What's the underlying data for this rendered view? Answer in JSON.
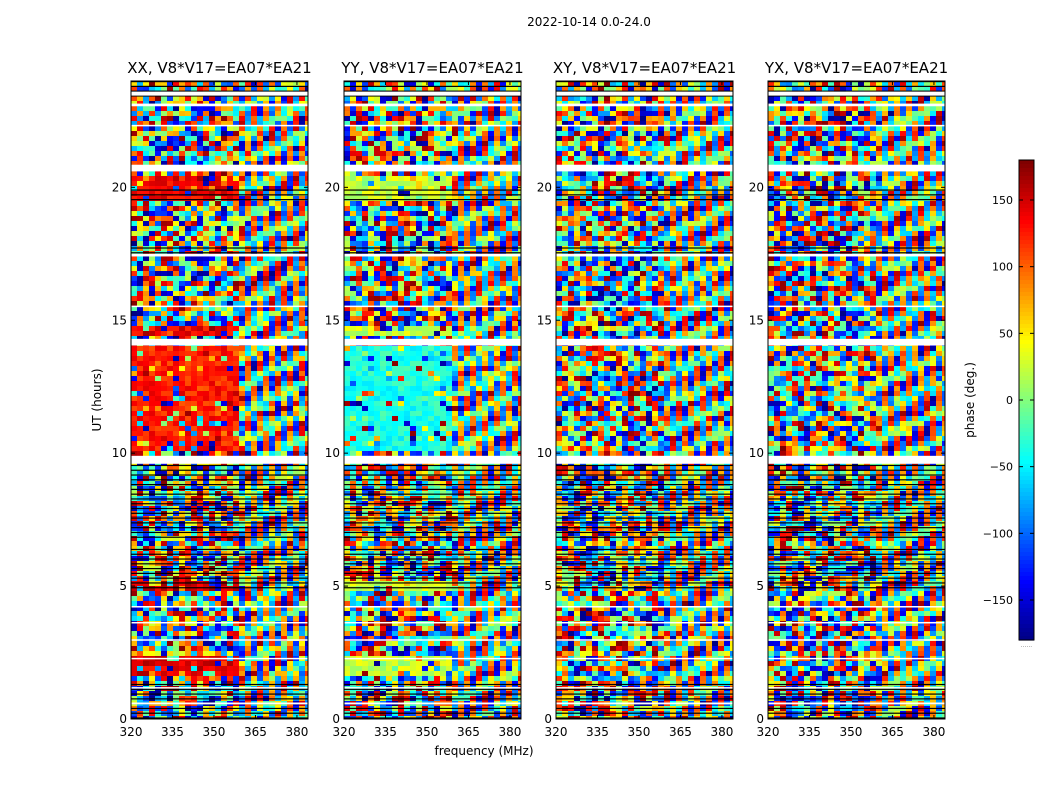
{
  "figure": {
    "suptitle": "2022-10-14 0.0-24.0",
    "xlabel": "frequency (MHz)",
    "ylabel": "UT (hours)"
  },
  "colorbar": {
    "label": "phase (deg.)",
    "range": [
      -180,
      180
    ],
    "ticks": [
      150,
      100,
      50,
      0,
      -50,
      -100,
      -150
    ],
    "tick_labels": [
      "150",
      "100",
      "50",
      "0",
      "−50",
      "−100",
      "−150"
    ],
    "footer": "......",
    "colormap": "jet"
  },
  "colors": {
    "jet": [
      "#00007f",
      "#0000ff",
      "#007fff",
      "#00ffff",
      "#7fff7f",
      "#ffff00",
      "#ff7f00",
      "#ff0000",
      "#7f0000"
    ],
    "background": "#ffffff",
    "axes": "#000000"
  },
  "chart_data": [
    {
      "type": "heatmap",
      "title": "XX, V8*V17=EA07*EA21",
      "xlim": [
        320,
        384
      ],
      "ylim": [
        0,
        24
      ],
      "xticks": [
        320,
        335,
        350,
        365,
        380
      ],
      "xtick_labels": [
        "320",
        "335",
        "350",
        "365",
        "380"
      ],
      "yticks": [
        0,
        5,
        10,
        15,
        20
      ],
      "ytick_labels": [
        "0",
        "5",
        "10",
        "15",
        "20"
      ],
      "value": "phase (deg.)",
      "pattern": "noisy phase; near-constant ~140° below 360 MHz during 19.5–20.5 h, 14.3–14.8 h, 10–14 h, 4.9–5.1 h, 1.5–2.4 h; fringe ripples above 360 MHz"
    },
    {
      "type": "heatmap",
      "title": "YY, V8*V17=EA07*EA21",
      "xlim": [
        320,
        384
      ],
      "ylim": [
        0,
        24
      ],
      "xticks": [
        320,
        335,
        350,
        365,
        380
      ],
      "xtick_labels": [
        "320",
        "335",
        "350",
        "365",
        "380"
      ],
      "yticks": [
        0,
        5,
        10,
        15,
        20
      ],
      "ytick_labels": [
        "0",
        "5",
        "10",
        "15",
        "20"
      ],
      "value": "phase (deg.)",
      "pattern": "noisy phase; near-constant ~20° below 360 MHz during 19.5–20.5 h, 14.3–14.8 h, 4.9–5.1 h, 1.5–2.4 h; ~-40° during 10–14 h"
    },
    {
      "type": "heatmap",
      "title": "XY, V8*V17=EA07*EA21",
      "xlim": [
        320,
        384
      ],
      "ylim": [
        0,
        24
      ],
      "xticks": [
        320,
        335,
        350,
        365,
        380
      ],
      "xtick_labels": [
        "320",
        "335",
        "350",
        "365",
        "380"
      ],
      "yticks": [
        0,
        5,
        10,
        15,
        20
      ],
      "ytick_labels": [
        "0",
        "5",
        "10",
        "15",
        "20"
      ],
      "value": "phase (deg.)",
      "pattern": "noisy phase with fringe ripples"
    },
    {
      "type": "heatmap",
      "title": "YX, V8*V17=EA07*EA21",
      "xlim": [
        320,
        384
      ],
      "ylim": [
        0,
        24
      ],
      "xticks": [
        320,
        335,
        350,
        365,
        380
      ],
      "xtick_labels": [
        "320",
        "335",
        "350",
        "365",
        "380"
      ],
      "yticks": [
        0,
        5,
        10,
        15,
        20
      ],
      "ytick_labels": [
        "0",
        "5",
        "10",
        "15",
        "20"
      ],
      "value": "phase (deg.)",
      "pattern": "noisy phase with fringe ripples"
    }
  ],
  "flag_bands_hours": [
    [
      0.55,
      0.62
    ],
    [
      1.15,
      1.2
    ],
    [
      2.25,
      2.3
    ],
    [
      2.95,
      3.0
    ],
    [
      3.6,
      3.65
    ],
    [
      4.2,
      4.25
    ],
    [
      9.6,
      9.9
    ],
    [
      14.05,
      14.3
    ],
    [
      15.5,
      15.55
    ],
    [
      17.4,
      17.5
    ],
    [
      20.6,
      20.85
    ],
    [
      22.3,
      22.35
    ],
    [
      23.05,
      23.15
    ],
    [
      23.45,
      23.6
    ]
  ],
  "dense_bands_hours": [
    [
      0.0,
      1.3
    ],
    [
      4.9,
      6.5
    ],
    [
      6.8,
      9.6
    ],
    [
      17.5,
      17.7
    ],
    [
      19.5,
      19.9
    ],
    [
      23.4,
      24.0
    ]
  ]
}
